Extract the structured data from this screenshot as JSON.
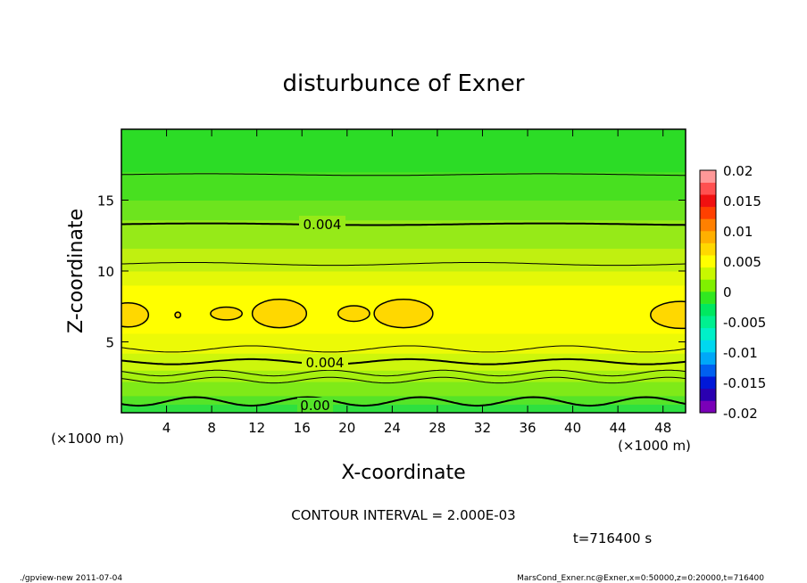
{
  "chart_data": {
    "type": "contour",
    "title": "disturbunce of Exner",
    "xlabel": "X-coordinate",
    "ylabel": "Z-coordinate",
    "x_unit": "(×1000 m)",
    "y_unit": "(×1000 m)",
    "xlim": [
      0,
      50
    ],
    "ylim": [
      0,
      20
    ],
    "x_ticks": [
      4,
      8,
      12,
      16,
      20,
      24,
      28,
      32,
      36,
      40,
      44,
      48
    ],
    "y_ticks": [
      5,
      10,
      15
    ],
    "contour_interval_text": "CONTOUR INTERVAL = 2.000E-03",
    "time_text": "t=716400 s",
    "contour_labels": [
      "0.004",
      "0.004",
      "0.00"
    ],
    "colorbar": {
      "ticks": [
        "0.02",
        "0.015",
        "0.01",
        "0.005",
        "0",
        "-0.005",
        "-0.01",
        "-0.015",
        "-0.02"
      ],
      "range": [
        -0.02,
        0.02
      ],
      "colors": [
        "#7a00b8",
        "#2a00b0",
        "#0018d8",
        "#0060f0",
        "#00a8f8",
        "#00d8f0",
        "#00f0c8",
        "#00f090",
        "#00e860",
        "#30e820",
        "#80f000",
        "#c8f800",
        "#ffff00",
        "#ffd800",
        "#ffb000",
        "#ff8000",
        "#ff4000",
        "#f01010",
        "#ff5050",
        "#ff9898"
      ]
    },
    "bands": [
      {
        "z0": 0.0,
        "z1": 0.6,
        "color": "#2ee040"
      },
      {
        "z0": 0.6,
        "z1": 1.2,
        "color": "#55e428"
      },
      {
        "z0": 1.2,
        "z1": 2.2,
        "color": "#7fea18"
      },
      {
        "z0": 2.2,
        "z1": 3.0,
        "color": "#a6f010"
      },
      {
        "z0": 3.0,
        "z1": 4.2,
        "color": "#cdf60c"
      },
      {
        "z0": 4.2,
        "z1": 5.6,
        "color": "#ecfa06"
      },
      {
        "z0": 5.6,
        "z1": 9.0,
        "color": "#ffff00"
      },
      {
        "z0": 9.0,
        "z1": 10.0,
        "color": "#e4f808"
      },
      {
        "z0": 10.0,
        "z1": 11.6,
        "color": "#c0f010"
      },
      {
        "z0": 11.6,
        "z1": 13.6,
        "color": "#96ea18"
      },
      {
        "z0": 13.6,
        "z1": 15.0,
        "color": "#6de41e"
      },
      {
        "z0": 15.0,
        "z1": 17.0,
        "color": "#48e020"
      },
      {
        "z0": 17.0,
        "z1": 20.0,
        "color": "#2cdc26"
      }
    ],
    "contour_lines": [
      {
        "z": 0.8,
        "amp": 0.3,
        "period": 10,
        "phase": 4,
        "width": 2.0
      },
      {
        "z": 2.3,
        "amp": 0.2,
        "period": 10,
        "phase": 6,
        "width": 1.0
      },
      {
        "z": 2.8,
        "amp": 0.2,
        "period": 10,
        "phase": 6,
        "width": 1.0
      },
      {
        "z": 3.6,
        "amp": 0.18,
        "period": 14,
        "phase": 8,
        "width": 2.0
      },
      {
        "z": 4.5,
        "amp": 0.22,
        "period": 14,
        "phase": 8,
        "width": 1.0
      },
      {
        "z": 10.5,
        "amp": 0.1,
        "period": 25,
        "phase": 0,
        "width": 1.0
      },
      {
        "z": 13.3,
        "amp": 0.06,
        "period": 30,
        "phase": 0,
        "width": 2.0
      },
      {
        "z": 16.8,
        "amp": 0.06,
        "period": 30,
        "phase": 0,
        "width": 1.0
      }
    ],
    "blobs": [
      {
        "cx": 0.6,
        "cz": 6.9,
        "rx": 1.8,
        "rz": 0.85
      },
      {
        "cx": 5.0,
        "cz": 6.9,
        "rx": 0.25,
        "rz": 0.2
      },
      {
        "cx": 9.3,
        "cz": 7.0,
        "rx": 1.4,
        "rz": 0.45
      },
      {
        "cx": 14.0,
        "cz": 7.0,
        "rx": 2.4,
        "rz": 1.0
      },
      {
        "cx": 20.6,
        "cz": 7.0,
        "rx": 1.4,
        "rz": 0.55
      },
      {
        "cx": 25.0,
        "cz": 7.0,
        "rx": 2.6,
        "rz": 1.0
      },
      {
        "cx": 49.6,
        "cz": 6.9,
        "rx": 2.7,
        "rz": 0.95
      }
    ]
  },
  "footer": {
    "left": "./gpview-new   2011-07-04",
    "right": "MarsCond_Exner.nc@Exner,x=0:50000,z=0:20000,t=716400"
  }
}
